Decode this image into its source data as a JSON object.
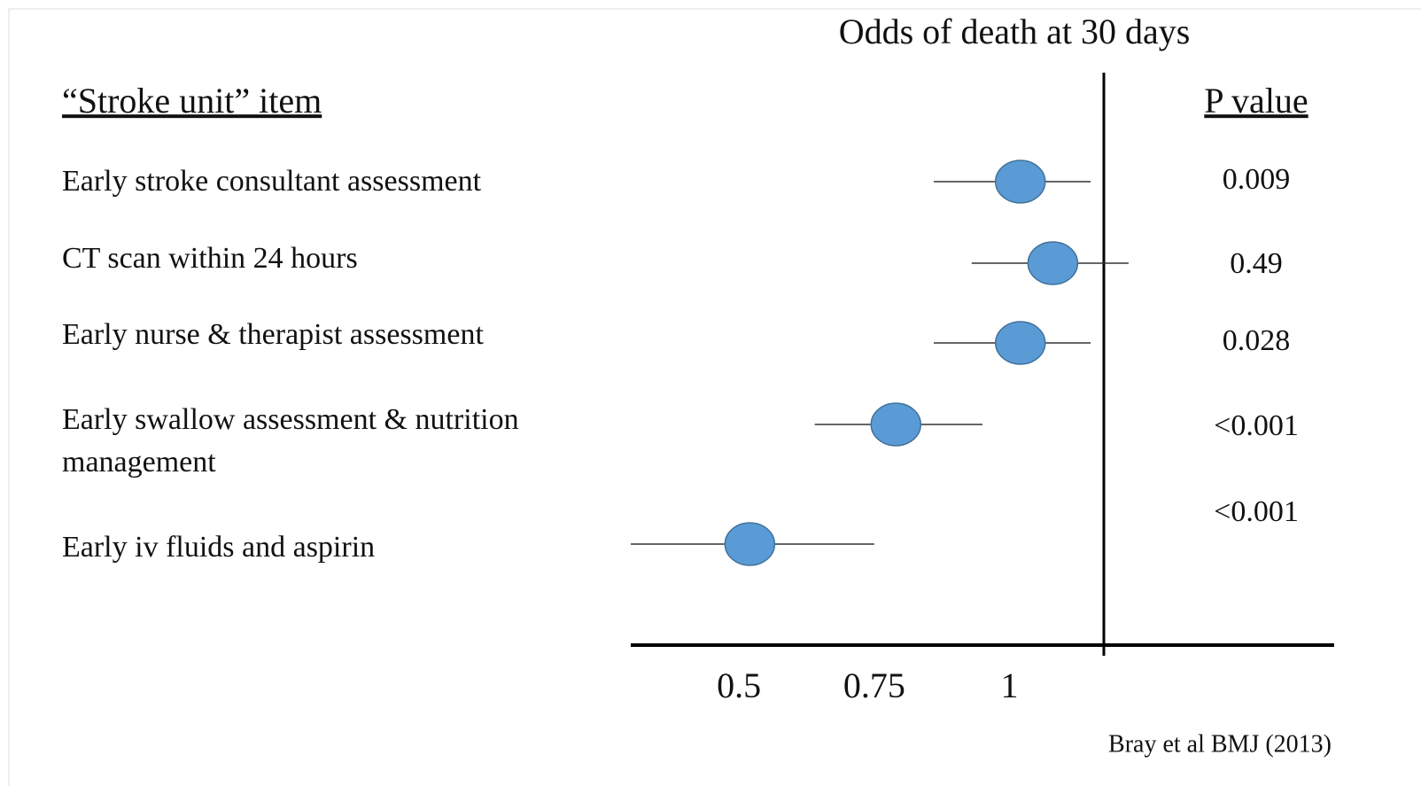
{
  "chart_data": {
    "type": "forest",
    "title": "Odds of death at 30 days",
    "label_header": "“Stroke unit” item",
    "pvalue_header": "P value",
    "categories": [
      "Early stroke consultant assessment",
      "CT scan within 24 hours",
      "Early nurse & therapist assessment",
      "Early swallow assessment & nutrition management",
      "Early iv fluids and aspirin"
    ],
    "values": [
      1.02,
      1.08,
      1.02,
      0.79,
      0.52
    ],
    "lower": [
      0.86,
      0.93,
      0.86,
      0.64,
      0.3
    ],
    "upper": [
      1.15,
      1.22,
      1.15,
      0.95,
      0.75
    ],
    "p_values": [
      "0.009",
      "0.49",
      "0.028",
      "<0.001",
      "<0.001"
    ],
    "color": "#5b9bd5",
    "xlim": [
      0.3,
      1.6
    ],
    "xticks": [
      0.5,
      0.75,
      1
    ],
    "source": "Bray et al BMJ (2013)"
  }
}
